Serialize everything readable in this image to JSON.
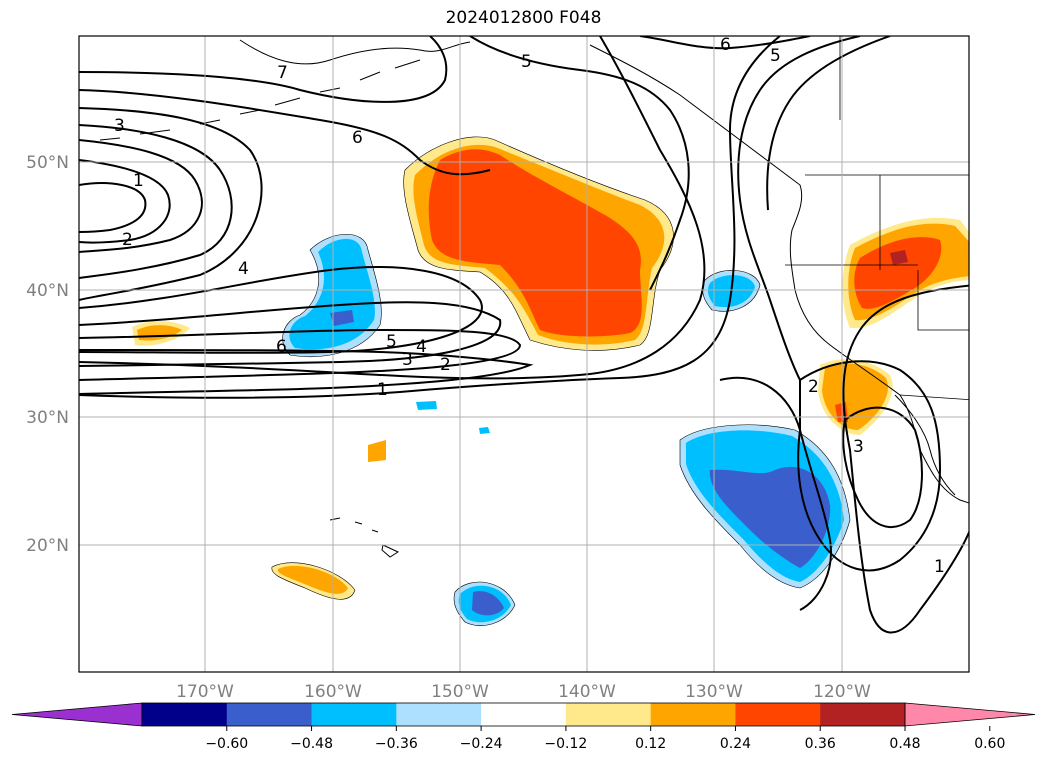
{
  "title": "2024012800 F048",
  "map": {
    "lat_labels": [
      "50°N",
      "40°N",
      "30°N",
      "20°N"
    ],
    "lon_labels": [
      "170°W",
      "160°W",
      "150°W",
      "140°W",
      "130°W",
      "120°W"
    ],
    "contour_labels": [
      "7",
      "5",
      "6",
      "5",
      "3",
      "1",
      "6",
      "2",
      "4",
      "6",
      "5",
      "4",
      "3",
      "2",
      "1",
      "2",
      "3",
      "1"
    ],
    "grid": true
  },
  "colorbar": {
    "ticks": [
      "−0.60",
      "−0.48",
      "−0.36",
      "−0.24",
      "−0.12",
      "0.12",
      "0.24",
      "0.36",
      "0.48",
      "0.60"
    ],
    "colors": [
      "#9b30d0",
      "#00008b",
      "#3a5fcd",
      "#00bfff",
      "#addfff",
      "#ffffff",
      "#ffe98a",
      "#ffa500",
      "#ff4500",
      "#b22222",
      "#ff88aa"
    ],
    "extend": "both"
  }
}
